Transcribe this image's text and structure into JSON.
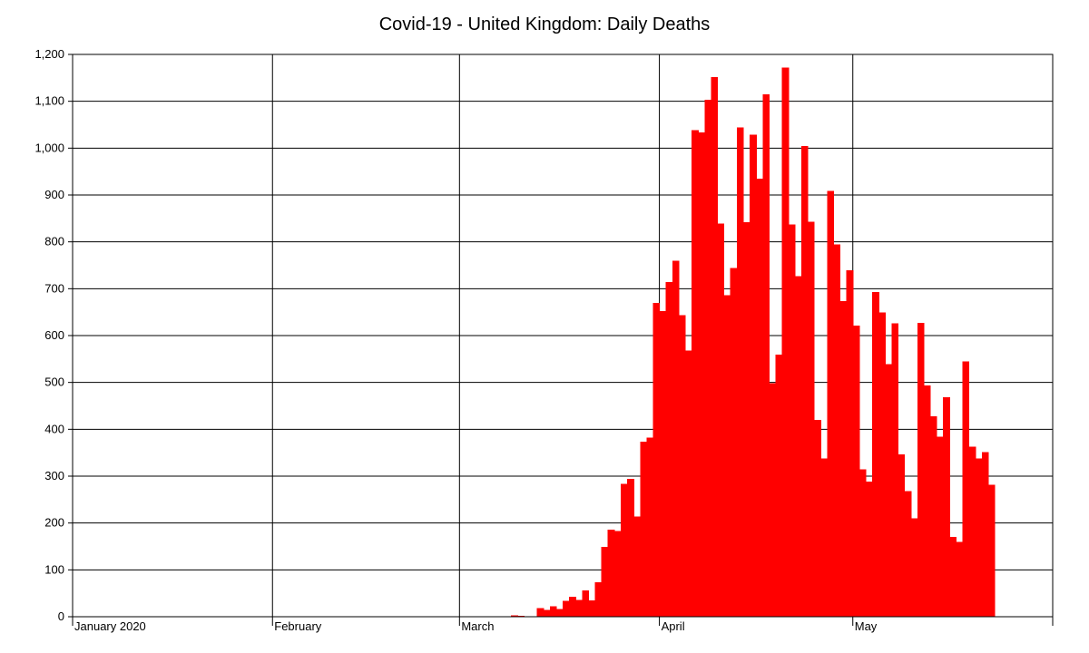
{
  "chart_data": {
    "type": "bar",
    "title": "Covid-19 - United Kingdom: Daily Deaths",
    "xlabel": "",
    "ylabel": "",
    "ylim": [
      0,
      1200
    ],
    "ytick_values": [
      0,
      100,
      200,
      300,
      400,
      500,
      600,
      700,
      800,
      900,
      1000,
      1100,
      1200
    ],
    "ytick_labels": [
      "0",
      "100",
      "200",
      "300",
      "400",
      "500",
      "600",
      "700",
      "800",
      "900",
      "1,000",
      "1,100",
      "1,200"
    ],
    "x_range": [
      "2020-01-01",
      "2020-05-31"
    ],
    "month_ticks": [
      {
        "date": "2020-01-01",
        "label": "January 2020"
      },
      {
        "date": "2020-02-01",
        "label": "February"
      },
      {
        "date": "2020-03-01",
        "label": "March"
      },
      {
        "date": "2020-04-01",
        "label": "April"
      },
      {
        "date": "2020-05-01",
        "label": "May"
      }
    ],
    "grid": true,
    "bar_color": "#ff0000",
    "series": [
      {
        "x_start": "2020-03-01",
        "values": [
          0,
          0,
          0,
          0,
          1,
          1,
          0,
          1,
          3,
          2,
          1,
          1,
          18,
          15,
          22,
          16,
          34,
          43,
          36,
          56,
          35,
          74,
          149,
          186,
          183,
          284,
          294,
          214,
          374,
          382,
          670,
          652,
          714,
          760,
          644,
          568,
          1038,
          1034,
          1103,
          1152,
          839,
          686,
          744,
          1044,
          842,
          1029,
          935,
          1115,
          498,
          559,
          1172,
          837,
          727,
          1005,
          843,
          420,
          338,
          909,
          795,
          674,
          739,
          621,
          315,
          288,
          693,
          649,
          539,
          626,
          346,
          268,
          210,
          627,
          494,
          428,
          384,
          468,
          170,
          160,
          545,
          363,
          338,
          351,
          282
        ]
      }
    ]
  }
}
